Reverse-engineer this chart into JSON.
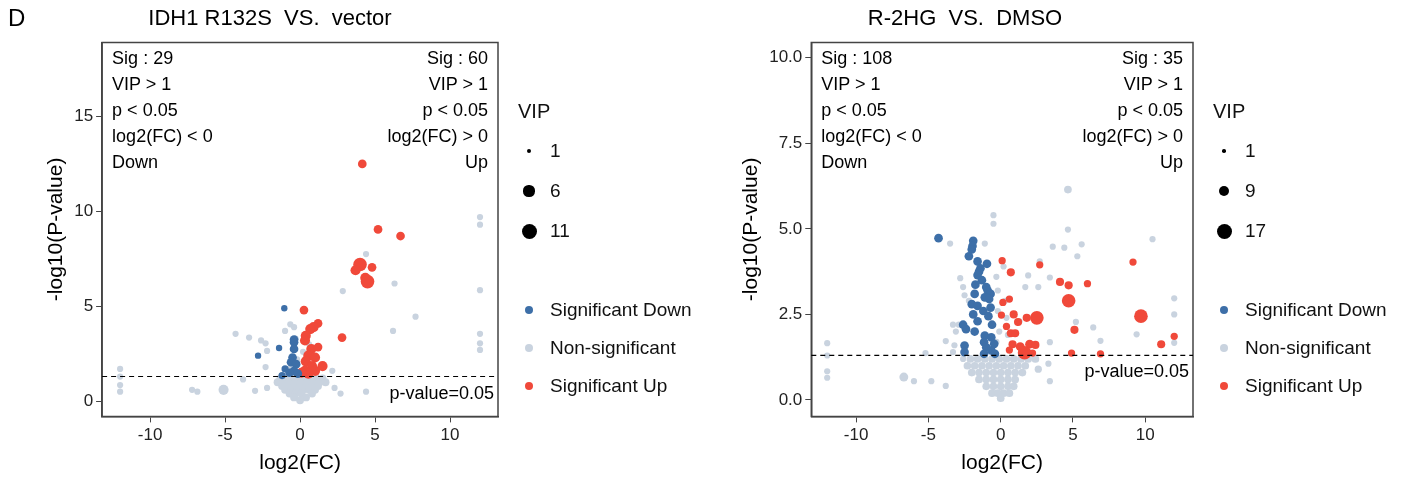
{
  "chart_data": [
    {
      "type": "bubble",
      "title": "IDH1 R132S  VS.  vector",
      "xlabel": "log2(FC)",
      "ylabel": "-log10(P-value)",
      "xlim": [
        -13.2,
        13.2
      ],
      "xticks": [
        -10,
        -5,
        0,
        5,
        10
      ],
      "ylim": [
        -0.8,
        18.9
      ],
      "yticks": [
        0,
        5,
        10,
        15
      ],
      "grid": false,
      "marker": "circle",
      "legend": "right",
      "legend_title": "VIP",
      "size_legend": [
        1,
        6,
        11
      ],
      "ref_lines": [
        {
          "axis": "y",
          "value": 1.30103,
          "line_style": "dashed",
          "color": "#000000"
        }
      ],
      "annotations": [
        {
          "text": "p-value=0.05",
          "y": 1.30103
        },
        "D",
        "Sig : 29\nVIP > 1\np < 0.05\nlog2(FC) < 0\nDown",
        "Sig : 60\nVIP > 1\np < 0.05\nlog2(FC) > 0\nUp"
      ],
      "series": [
        {
          "name": "Significant Down",
          "color": "#3d6fa8",
          "x": [
            -1.05,
            -2.8,
            -1.4,
            -0.4,
            -0.4,
            -0.4,
            -0.5,
            -0.6,
            -0.26,
            -1.0,
            -0.4,
            -1.2,
            -0.7,
            -0.15
          ],
          "values": [
            4.9,
            2.4,
            2.8,
            3.25,
            3.1,
            2.75,
            2.3,
            2.05,
            1.95,
            1.7,
            1.6,
            1.35,
            1.5,
            1.45
          ],
          "sizes": [
            2,
            2,
            2,
            3.7,
            3.7,
            3.7,
            3.7,
            3.7,
            3.7,
            2.5,
            3.7,
            2.5,
            3.7,
            3.7
          ]
        },
        {
          "name": "Non-significant",
          "color": "#c9d3df",
          "x": [
            12,
            12,
            12,
            12,
            12,
            12,
            -12,
            -12,
            -12,
            -12,
            4.4,
            6.3,
            2.85,
            7.7,
            6.2,
            -4.3,
            -3.4,
            -2.6,
            -2.3,
            -2.2,
            -2.3,
            -0.65,
            -1.0,
            -0.4,
            2.15,
            -5.1,
            -7.2,
            -6.85,
            -3.0,
            -3.8,
            2.7,
            4.4,
            2.3,
            -2.2,
            -0.8,
            -0.2,
            0.2,
            -0.3,
            0.6,
            -1.3,
            -0.9,
            -0.5,
            -0.1,
            0.3,
            0.7,
            1.1,
            1.5,
            -1.5,
            -1.1,
            -0.7,
            -0.3,
            0.1,
            0.5,
            0.9,
            1.3,
            1.7,
            -1.2,
            -0.8,
            -0.4,
            0,
            0.4,
            0.8,
            1.2,
            -1.0,
            -0.6,
            -0.2,
            0.2,
            0.6,
            1.0,
            -0.7,
            -0.3,
            0.1,
            0.8,
            -0.4,
            0.4,
            0
          ],
          "values": [
            9.7,
            9.3,
            5.85,
            3.55,
            3.05,
            2.7,
            1.7,
            1.3,
            0.85,
            0.5,
            7.75,
            6.2,
            5.8,
            4.45,
            3.7,
            3.55,
            3.35,
            3.2,
            3.05,
            2.65,
            1.8,
            4.05,
            3.7,
            3.9,
            1.6,
            0.6,
            0.6,
            0.5,
            0.55,
            1.15,
            0.4,
            0.5,
            0.7,
            0.7,
            1.7,
            2.2,
            2.6,
            3.3,
            3.0,
            1.2,
            1.2,
            1.2,
            1.2,
            1.2,
            1.2,
            1.2,
            1.2,
            1.0,
            1.0,
            1.0,
            1.0,
            1.0,
            1.0,
            1.0,
            1.0,
            1.0,
            0.8,
            0.8,
            0.8,
            0.8,
            0.8,
            0.8,
            0.8,
            0.6,
            0.6,
            0.6,
            0.6,
            0.6,
            0.6,
            0.4,
            0.4,
            0.4,
            0.4,
            0.2,
            0.2,
            0.05
          ],
          "sizes": [
            1.9,
            1.9,
            1.9,
            1.9,
            1.9,
            1.9,
            1.9,
            1.9,
            1.9,
            1.9,
            1.9,
            1.9,
            1.9,
            1.9,
            1.9,
            1.9,
            1.9,
            1.9,
            1.9,
            1.9,
            1.9,
            1.9,
            1.9,
            1.9,
            1.9,
            5,
            1.9,
            1.9,
            1.9,
            1.9,
            1.9,
            1.9,
            1.9,
            1.9,
            1.9,
            1.9,
            1.9,
            1.9,
            1.9,
            3,
            3,
            3,
            3,
            3,
            3,
            3,
            3,
            3,
            3,
            3,
            3,
            3,
            3,
            3,
            3,
            3,
            3,
            3,
            3,
            3,
            3,
            3,
            3,
            3,
            3,
            3,
            3,
            3,
            3,
            3,
            3,
            3,
            3,
            3,
            3,
            3
          ]
        },
        {
          "name": "Significant Up",
          "color": "#f0493a",
          "x": [
            4.15,
            5.2,
            6.7,
            4.0,
            3.7,
            4.8,
            4.35,
            4.5,
            2.8,
            0.26,
            1.2,
            0.9,
            0.68,
            0.38,
            0.33,
            0.75,
            0.55,
            1.0,
            0.38,
            0.8,
            1.5,
            0.33,
            1.0,
            0.55,
            0.1,
            1.2
          ],
          "values": [
            12.5,
            9.05,
            8.7,
            7.2,
            6.9,
            7.05,
            6.5,
            6.3,
            3.35,
            4.8,
            4.1,
            3.9,
            3.8,
            3.45,
            3.2,
            2.75,
            2.4,
            2.3,
            2.1,
            1.85,
            1.85,
            1.6,
            1.6,
            1.45,
            1.5,
            2.85
          ],
          "sizes": [
            3.7,
            3.7,
            3.7,
            9,
            5,
            3.7,
            5,
            9,
            3.7,
            3.7,
            3.7,
            5,
            5,
            5,
            5,
            5,
            5,
            5,
            5,
            5,
            5,
            5,
            5,
            5,
            5,
            3.7
          ]
        }
      ]
    },
    {
      "type": "bubble",
      "title": "R-2HG  VS.  DMSO",
      "xlabel": "log2(FC)",
      "ylabel": "-log10(P-value)",
      "xlim": [
        -13.1,
        13.3
      ],
      "xticks": [
        -10,
        -5,
        0,
        5,
        10
      ],
      "ylim": [
        -0.48,
        10.45
      ],
      "yticks": [
        {
          "value": 0,
          "label": "0.0"
        },
        {
          "value": 2.5,
          "label": "2.5"
        },
        {
          "value": 5,
          "label": "5.0"
        },
        {
          "value": 7.5,
          "label": "7.5"
        },
        {
          "value": 10,
          "label": "10.0"
        }
      ],
      "grid": false,
      "marker": "circle",
      "legend": "right",
      "legend_title": "VIP",
      "size_legend": [
        1,
        9,
        17
      ],
      "ref_lines": [
        {
          "axis": "y",
          "value": 1.30103,
          "line_style": "dashed",
          "color": "#000000"
        }
      ],
      "annotations": [
        {
          "text": "p-value=0.05",
          "y": 1.30103
        },
        "Sig : 108\nVIP > 1\np < 0.05\nlog2(FC) < 0\nDown",
        "Sig : 35\nVIP > 1\np < 0.05\nlog2(FC) > 0\nUp"
      ],
      "series": [
        {
          "name": "Significant Down",
          "color": "#3d6fa8",
          "x": [
            -4.3,
            -1.9,
            -1.95,
            -2.0,
            -2.2,
            -1.6,
            -0.95,
            -1.4,
            -1.5,
            -1.6,
            -1.3,
            -1.75,
            -1.0,
            -0.9,
            -0.7,
            -1.8,
            -1.1,
            -0.8,
            -2.0,
            -1.6,
            -1.2,
            -0.7,
            -1.9,
            -0.85,
            -2.6,
            -1.6,
            -0.6,
            -2.4,
            -1.8,
            -1.1,
            -0.65,
            -1.15,
            -0.45,
            -2.5,
            -1.0,
            -2.5,
            -0.65,
            -0.4,
            -1.15
          ],
          "values": [
            4.73,
            4.65,
            4.5,
            4.4,
            4.2,
            4.05,
            3.98,
            3.85,
            3.75,
            3.65,
            3.5,
            3.37,
            3.3,
            3.2,
            3.1,
            3.1,
            3.0,
            2.95,
            2.8,
            2.75,
            2.6,
            2.7,
            2.5,
            2.45,
            2.2,
            2.3,
            2.2,
            2.07,
            2.0,
            1.88,
            1.83,
            1.69,
            1.64,
            1.59,
            1.54,
            1.4,
            1.45,
            1.35,
            1.35
          ],
          "sizes": [
            5.7,
            5.7,
            5.7,
            5.7,
            5.7,
            5.7,
            5.7,
            5.7,
            5.7,
            5.7,
            5.7,
            5.7,
            5.7,
            5.7,
            5.7,
            5.7,
            5.7,
            5.7,
            5.7,
            5.7,
            5.7,
            5.7,
            5.7,
            5.7,
            5.7,
            5.7,
            5.7,
            5.7,
            5.7,
            5.7,
            5.7,
            5.7,
            5.7,
            5.7,
            5.7,
            5.7,
            5.7,
            5.7,
            5.7
          ]
        },
        {
          "name": "Non-significant",
          "color": "#c9d3df",
          "x": [
            4.65,
            -0.5,
            -0.5,
            4.65,
            10.5,
            5.6,
            3.6,
            4.4,
            -3.5,
            -1.1,
            5.3,
            2.7,
            1.9,
            3.4,
            1.7,
            2.6,
            12,
            12,
            -2.8,
            -2.5,
            6.4,
            5.2,
            9.4,
            12,
            6.9,
            3.4,
            -3.8,
            -12,
            -12,
            -12,
            -12,
            -6.7,
            -6.0,
            -4.8,
            -5.2,
            -3.8,
            -3.3,
            2.6,
            3.3,
            3.4,
            -3.3,
            -2.9,
            -3.1,
            -2.2,
            -0.3,
            -0.2,
            0.3,
            -0.2,
            0.4,
            -0.1,
            0.5,
            -0.3,
            -3.2,
            0.2,
            -2.6,
            1.3,
            -2.6,
            -2.1,
            -1.6,
            -1.1,
            -0.6,
            -0.1,
            0.4,
            0.9,
            1.4,
            1.9,
            2.4,
            -2.3,
            -1.8,
            -1.3,
            -0.8,
            -0.3,
            0.2,
            0.7,
            1.2,
            1.7,
            -2.0,
            -1.5,
            -1.0,
            -0.5,
            0,
            0.5,
            1.0,
            1.5,
            -1.5,
            -1.0,
            -0.5,
            0,
            0.5,
            1.0,
            -1.0,
            -0.5,
            0,
            0.5,
            0.9,
            -0.6,
            -0.2,
            0.2,
            0.6,
            0
          ],
          "values": [
            6.15,
            5.4,
            5.15,
            4.98,
            4.7,
            4.55,
            4.48,
            4.45,
            4.57,
            4.57,
            4.2,
            4.05,
            3.64,
            3.58,
            3.3,
            3.3,
            2.97,
            2.5,
            3.56,
            3.06,
            2.12,
            2.28,
            1.92,
            1.67,
            1.73,
            1.69,
            1.72,
            1.66,
            1.3,
            0.84,
            0.65,
            0.67,
            0.55,
            0.55,
            1.37,
            0.41,
            1.4,
            0.9,
            1.06,
            0.55,
            2.2,
            2.2,
            2.0,
            2.9,
            3.6,
            3.2,
            2.9,
            2.6,
            2.4,
            2.0,
            1.9,
            1.7,
            1.6,
            3.9,
            3.3,
            2.3,
            1.2,
            1.2,
            1.2,
            1.2,
            1.2,
            1.2,
            1.2,
            1.2,
            1.2,
            1.2,
            1.2,
            1.0,
            1.0,
            1.0,
            1.0,
            1.0,
            1.0,
            1.0,
            1.0,
            1.0,
            0.8,
            0.8,
            0.8,
            0.8,
            0.8,
            0.8,
            0.8,
            0.8,
            0.6,
            0.6,
            0.6,
            0.6,
            0.6,
            0.6,
            0.4,
            0.4,
            0.4,
            0.4,
            0.4,
            0.2,
            0.2,
            0.2,
            0.2,
            0.05
          ],
          "sizes": [
            4.5,
            2.9,
            2.9,
            2.9,
            2.9,
            2.9,
            2.9,
            2.9,
            2.9,
            2.9,
            2.9,
            2.9,
            2.9,
            2.9,
            2.9,
            2.9,
            2.9,
            2.9,
            2.9,
            2.9,
            2.9,
            2.9,
            2.9,
            2.9,
            2.9,
            2.9,
            2.9,
            2.9,
            2.9,
            2.9,
            2.9,
            6,
            2.9,
            2.9,
            2.9,
            2.9,
            2.9,
            4,
            2.9,
            2.9,
            2.9,
            2.9,
            2.9,
            2.9,
            2.9,
            2.9,
            2.9,
            2.9,
            2.9,
            2.9,
            2.9,
            2.9,
            2.9,
            2.9,
            2.9,
            2.9,
            2.9,
            4.5,
            4.5,
            4.5,
            4.5,
            4.5,
            4.5,
            4.5,
            4.5,
            4.5,
            4.5,
            4.5,
            4.5,
            4.5,
            4.5,
            4.5,
            4.5,
            4.5,
            4.5,
            4.5,
            4.5,
            4.5,
            4.5,
            4.5,
            4.5,
            4.5,
            4.5,
            4.5,
            4.5,
            4.5,
            4.5,
            4.5,
            4.5,
            4.5,
            4.5,
            4.5,
            4.5,
            4.5,
            4.5,
            4.5,
            4.5,
            4.5,
            4.5,
            4.5
          ]
        },
        {
          "name": "Significant Up",
          "color": "#f0493a",
          "x": [
            0.1,
            2.7,
            0.7,
            9.15,
            4.1,
            4.7,
            6.0,
            4.7,
            0.6,
            0.15,
            2.5,
            9.7,
            0.9,
            1.8,
            0.05,
            1.2,
            0.4,
            5.1,
            0.7,
            1.0,
            12.0,
            11.1,
            0.82,
            1.35,
            2.0,
            2.4,
            0.6,
            1.65,
            2.2,
            4.9,
            6.9
          ],
          "values": [
            4.07,
            3.95,
            3.73,
            4.03,
            3.45,
            3.35,
            3.4,
            2.9,
            2.95,
            2.85,
            2.4,
            2.45,
            2.5,
            2.4,
            2.48,
            2.28,
            2.15,
            2.05,
            1.95,
            1.95,
            1.86,
            1.63,
            1.63,
            1.56,
            1.63,
            1.61,
            1.46,
            1.38,
            1.37,
            1.37,
            1.35
          ],
          "sizes": [
            4,
            4,
            5,
            4,
            5,
            5,
            4,
            14,
            4,
            4,
            14,
            14,
            5,
            5,
            4,
            5,
            4,
            5,
            5,
            5,
            4,
            5,
            5,
            6,
            6,
            5,
            4,
            14,
            4,
            4,
            4
          ]
        }
      ]
    }
  ]
}
